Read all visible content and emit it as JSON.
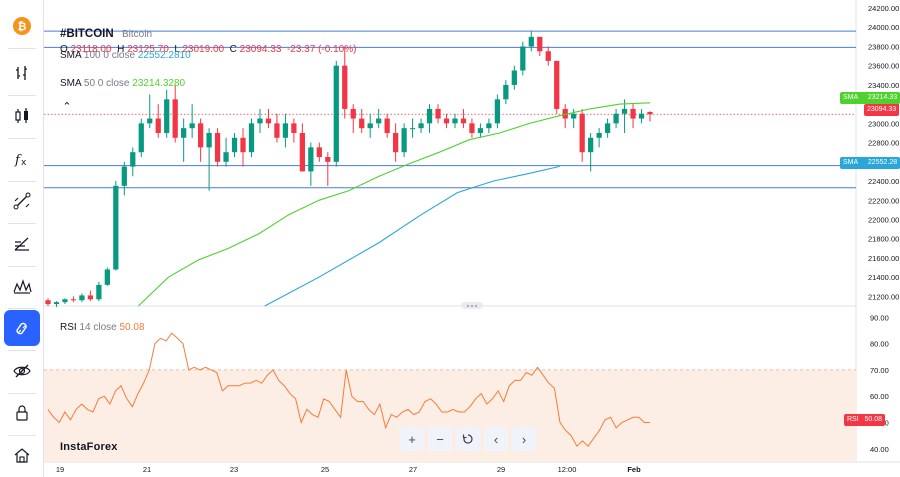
{
  "toolbar": {
    "items": [
      {
        "name": "bitcoin-logo",
        "icon": "bitcoin-icon"
      },
      {
        "name": "bar-type",
        "icon": "candles-icon"
      },
      {
        "name": "chart-style",
        "icon": "candle-style-icon"
      },
      {
        "name": "indicators",
        "icon": "fx-icon"
      },
      {
        "name": "drawing-tools",
        "icon": "trend-line-icon"
      },
      {
        "name": "fib-tools",
        "icon": "fib-icon"
      },
      {
        "name": "patterns",
        "icon": "pattern-icon"
      },
      {
        "name": "magnet",
        "icon": "magnet-icon",
        "active": true
      },
      {
        "name": "hide-drawings",
        "icon": "eye-off-icon"
      },
      {
        "name": "lock-drawings",
        "icon": "lock-icon"
      },
      {
        "name": "home",
        "icon": "home-icon"
      }
    ]
  },
  "legend": {
    "symbol": "#BITCOIN",
    "description": "Bitcoin",
    "o_label": "O",
    "o_value": "23118.00",
    "h_label": "H",
    "h_value": "23125.70",
    "l_label": "L",
    "l_value": "23019.00",
    "c_label": "C",
    "c_value": "23094.33",
    "change": "-23.37 (-0.10%)",
    "sma100_name": "SMA",
    "sma100_params": "100 0 close",
    "sma100_value": "22552.2810",
    "sma50_name": "SMA",
    "sma50_params": "50 0 close",
    "sma50_value": "23214.3280",
    "rsi_name": "RSI",
    "rsi_params": "14 close",
    "rsi_value": "50.08"
  },
  "tags": {
    "sma50_label": "SMA",
    "sma50_value": "23214.33",
    "price_value": "23094.33",
    "sma100_label": "SMA",
    "sma100_value": "22552.28",
    "rsi_label": "RSI",
    "rsi_value": "50.08"
  },
  "branding": {
    "logo_text": "InstaForex"
  },
  "nav": {
    "zoom_in": "+",
    "zoom_out": "−",
    "reset": "reset-icon",
    "scroll_left": "‹",
    "scroll_right": "›"
  },
  "colors": {
    "up": "#089981",
    "down": "#f23645",
    "sma50": "#4fd12e",
    "sma100": "#2aa6d8",
    "hline": "#4a7bd9",
    "rsi": "#f57c3a",
    "rsi_band": "#fdeee5",
    "price_line": "#f23645"
  },
  "chart_data": {
    "type": "candlestick",
    "price_axis": {
      "min": 21100,
      "max": 24200,
      "ticks": [
        21200,
        21400,
        21600,
        21800,
        22000,
        22200,
        22400,
        22600,
        22800,
        23000,
        23200,
        23400,
        23600,
        23800,
        24000,
        24200
      ]
    },
    "time_axis": {
      "labels": [
        "19",
        "21",
        "23",
        "25",
        "27",
        "29",
        "12:00",
        "Feb"
      ]
    },
    "horizontal_lines": [
      23960,
      23790,
      22560,
      22330
    ],
    "current_price": 23094.33,
    "candles": [
      [
        21160,
        21180,
        21100,
        21120
      ],
      [
        21120,
        21150,
        21090,
        21140
      ],
      [
        21140,
        21180,
        21120,
        21170
      ],
      [
        21170,
        21200,
        21140,
        21160
      ],
      [
        21160,
        21230,
        21140,
        21210
      ],
      [
        21210,
        21260,
        21150,
        21170
      ],
      [
        21170,
        21350,
        21150,
        21320
      ],
      [
        21320,
        21500,
        21310,
        21480
      ],
      [
        21480,
        22400,
        21470,
        22350
      ],
      [
        22350,
        22600,
        22250,
        22550
      ],
      [
        22550,
        22750,
        22450,
        22700
      ],
      [
        22700,
        23050,
        22650,
        23000
      ],
      [
        23000,
        23300,
        22950,
        23050
      ],
      [
        23050,
        23200,
        22850,
        22900
      ],
      [
        22900,
        23350,
        22850,
        23250
      ],
      [
        23250,
        23400,
        22800,
        22850
      ],
      [
        22850,
        23050,
        22600,
        22950
      ],
      [
        22950,
        23200,
        22850,
        23000
      ],
      [
        23000,
        23050,
        22600,
        22750
      ],
      [
        22750,
        22950,
        22300,
        22900
      ],
      [
        22900,
        22950,
        22550,
        22600
      ],
      [
        22600,
        22850,
        22550,
        22700
      ],
      [
        22700,
        22900,
        22650,
        22850
      ],
      [
        22850,
        22950,
        22550,
        22700
      ],
      [
        22700,
        23050,
        22650,
        23000
      ],
      [
        23000,
        23150,
        22900,
        23050
      ],
      [
        23050,
        23150,
        22950,
        23000
      ],
      [
        23000,
        23100,
        22800,
        22850
      ],
      [
        22850,
        23100,
        22750,
        23000
      ],
      [
        23000,
        23050,
        22800,
        22900
      ],
      [
        22900,
        23000,
        22500,
        22500
      ],
      [
        22500,
        22800,
        22350,
        22750
      ],
      [
        22750,
        22800,
        22600,
        22650
      ],
      [
        22650,
        22700,
        22350,
        22600
      ],
      [
        22600,
        23650,
        22550,
        23600
      ],
      [
        23600,
        23800,
        23050,
        23150
      ],
      [
        23150,
        23200,
        22900,
        23050
      ],
      [
        23050,
        23150,
        22900,
        22950
      ],
      [
        22950,
        23100,
        22850,
        23000
      ],
      [
        23000,
        23150,
        22950,
        23050
      ],
      [
        23050,
        23100,
        22850,
        22900
      ],
      [
        22900,
        23000,
        22600,
        22700
      ],
      [
        22700,
        23000,
        22650,
        22950
      ],
      [
        22950,
        23050,
        22850,
        22950
      ],
      [
        22950,
        23050,
        22900,
        23000
      ],
      [
        23000,
        23200,
        22900,
        23150
      ],
      [
        23150,
        23200,
        23000,
        23050
      ],
      [
        23050,
        23100,
        22950,
        23000
      ],
      [
        23000,
        23100,
        22950,
        23050
      ],
      [
        23050,
        23150,
        22950,
        23000
      ],
      [
        23000,
        23050,
        22850,
        22900
      ],
      [
        22900,
        23000,
        22850,
        22950
      ],
      [
        22950,
        23050,
        22900,
        23000
      ],
      [
        23000,
        23300,
        22950,
        23250
      ],
      [
        23250,
        23450,
        23200,
        23400
      ],
      [
        23400,
        23600,
        23350,
        23550
      ],
      [
        23550,
        23850,
        23500,
        23800
      ],
      [
        23800,
        23960,
        23750,
        23900
      ],
      [
        23900,
        23900,
        23700,
        23750
      ],
      [
        23750,
        23800,
        23600,
        23650
      ],
      [
        23650,
        23650,
        23100,
        23150
      ],
      [
        23150,
        23200,
        22950,
        23050
      ],
      [
        23050,
        23150,
        22950,
        23100
      ],
      [
        23100,
        23150,
        22600,
        22700
      ],
      [
        22700,
        22900,
        22500,
        22850
      ],
      [
        22850,
        22950,
        22750,
        22900
      ],
      [
        22900,
        23050,
        22850,
        23000
      ],
      [
        23000,
        23150,
        22950,
        23100
      ],
      [
        23100,
        23250,
        22900,
        23150
      ],
      [
        23150,
        23200,
        22950,
        23050
      ],
      [
        23050,
        23150,
        23000,
        23100
      ],
      [
        23118,
        23125.7,
        23019,
        23094.33
      ]
    ],
    "sma50": [
      [
        15,
        21100
      ],
      [
        20,
        21400
      ],
      [
        25,
        21580
      ],
      [
        30,
        21700
      ],
      [
        35,
        21850
      ],
      [
        40,
        22050
      ],
      [
        45,
        22200
      ],
      [
        50,
        22300
      ],
      [
        55,
        22450
      ],
      [
        60,
        22580
      ],
      [
        65,
        22700
      ],
      [
        70,
        22830
      ],
      [
        75,
        22900
      ],
      [
        80,
        23000
      ],
      [
        85,
        23080
      ],
      [
        90,
        23150
      ],
      [
        95,
        23200
      ],
      [
        100,
        23214
      ]
    ],
    "sma100": [
      [
        36,
        21100
      ],
      [
        45,
        21400
      ],
      [
        55,
        21760
      ],
      [
        62,
        22050
      ],
      [
        68,
        22280
      ],
      [
        74,
        22400
      ],
      [
        80,
        22480
      ],
      [
        85,
        22552
      ]
    ],
    "rsi_axis": {
      "min": 35,
      "max": 92,
      "ticks": [
        40,
        50,
        60,
        70,
        80,
        90
      ],
      "overbought": 70,
      "oversold": 30
    },
    "rsi": [
      55,
      52,
      50,
      54,
      51,
      55,
      57,
      55,
      54,
      59,
      60,
      57,
      62,
      64,
      59,
      56,
      61,
      65,
      70,
      80,
      82,
      81,
      84,
      82,
      80,
      70,
      71,
      70,
      71,
      70,
      69,
      62,
      64,
      64,
      64,
      65,
      65,
      66,
      65,
      68,
      70,
      66,
      64,
      61,
      59,
      50,
      55,
      53,
      52,
      59,
      58,
      55,
      52,
      70,
      60,
      58,
      58,
      55,
      53,
      57,
      48,
      53,
      52,
      54,
      55,
      53,
      54,
      58,
      59,
      57,
      54,
      54,
      55,
      54,
      54,
      56,
      59,
      61,
      57,
      59,
      62,
      58,
      64,
      66,
      66,
      69,
      68,
      71,
      68,
      65,
      63,
      50,
      47,
      45,
      41,
      43,
      41,
      44,
      47,
      51,
      52,
      48,
      50,
      51,
      52,
      52,
      50,
      50
    ],
    "sma50_series_name": "SMA",
    "sma100_series_name": "SMA",
    "rsi_series_name": "RSI"
  }
}
